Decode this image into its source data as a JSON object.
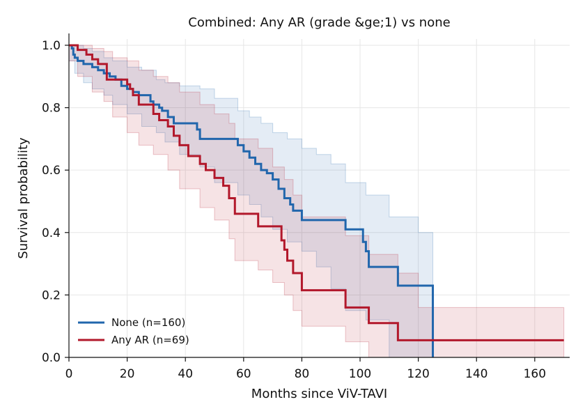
{
  "chart_data": {
    "type": "line",
    "title": "Combined: Any AR (grade &ge;1) vs none",
    "xlabel": "Months since ViV-TAVI",
    "ylabel": "Survival probability",
    "xlim": [
      0,
      172
    ],
    "ylim": [
      0,
      1.02
    ],
    "xticks": [
      0,
      20,
      40,
      60,
      80,
      100,
      120,
      140,
      160
    ],
    "yticks": [
      0.0,
      0.2,
      0.4,
      0.6,
      0.8,
      1.0
    ],
    "xtick_labels": [
      "0",
      "20",
      "40",
      "60",
      "80",
      "100",
      "120",
      "140",
      "160"
    ],
    "ytick_labels": [
      "0.0",
      "0.2",
      "0.4",
      "0.6",
      "0.8",
      "1.0"
    ],
    "grid": true,
    "legend_position": "lower-left",
    "series": [
      {
        "name": "None (n=160)",
        "color": "#2166ac",
        "x": [
          0,
          1,
          1.5,
          2,
          3,
          5,
          8,
          10,
          12,
          14,
          16,
          18,
          20,
          22,
          24,
          28,
          29,
          31,
          32,
          34,
          36,
          44,
          45,
          58,
          60,
          62,
          64,
          66,
          68,
          70,
          72,
          74,
          76,
          77,
          80,
          82,
          95,
          101,
          102,
          103,
          110,
          113,
          125,
          125
        ],
        "y": [
          1.0,
          0.99,
          0.97,
          0.96,
          0.95,
          0.94,
          0.93,
          0.92,
          0.91,
          0.9,
          0.89,
          0.87,
          0.86,
          0.85,
          0.84,
          0.82,
          0.81,
          0.8,
          0.79,
          0.77,
          0.75,
          0.73,
          0.7,
          0.68,
          0.66,
          0.64,
          0.62,
          0.6,
          0.59,
          0.57,
          0.54,
          0.51,
          0.49,
          0.47,
          0.44,
          0.44,
          0.41,
          0.37,
          0.34,
          0.29,
          0.29,
          0.23,
          0.23,
          0.0
        ]
      },
      {
        "name": "Any AR (n=69)",
        "color": "#b2182b",
        "x": [
          0,
          3,
          6,
          8,
          10,
          13,
          20,
          21,
          22,
          24,
          29,
          31,
          34,
          36,
          38,
          41,
          45,
          47,
          50,
          53,
          55,
          57,
          65,
          73,
          74,
          75,
          77,
          80,
          95,
          103,
          113,
          170
        ],
        "y": [
          1.0,
          0.985,
          0.97,
          0.955,
          0.94,
          0.89,
          0.875,
          0.86,
          0.84,
          0.81,
          0.78,
          0.76,
          0.74,
          0.71,
          0.68,
          0.645,
          0.62,
          0.6,
          0.575,
          0.55,
          0.51,
          0.46,
          0.42,
          0.375,
          0.345,
          0.31,
          0.27,
          0.215,
          0.16,
          0.11,
          0.055,
          0.055
        ]
      }
    ],
    "bands": [
      {
        "series": "None (n=160)",
        "color": "#2166ac",
        "opacity": 0.12,
        "x": [
          0,
          2,
          5,
          8,
          12,
          15,
          20,
          25,
          30,
          33,
          38,
          45,
          50,
          58,
          62,
          66,
          70,
          75,
          80,
          85,
          90,
          95,
          102,
          110,
          120,
          125
        ],
        "upper": [
          1.0,
          1.0,
          0.99,
          0.98,
          0.96,
          0.95,
          0.93,
          0.92,
          0.89,
          0.88,
          0.87,
          0.86,
          0.83,
          0.79,
          0.77,
          0.75,
          0.72,
          0.7,
          0.67,
          0.65,
          0.62,
          0.56,
          0.52,
          0.45,
          0.4,
          0.4
        ],
        "lower": [
          0.99,
          0.95,
          0.91,
          0.88,
          0.86,
          0.84,
          0.81,
          0.78,
          0.74,
          0.72,
          0.69,
          0.65,
          0.61,
          0.56,
          0.52,
          0.49,
          0.45,
          0.41,
          0.37,
          0.34,
          0.29,
          0.22,
          0.15,
          0.12,
          0.0,
          0.0
        ]
      },
      {
        "series": "Any AR (n=69)",
        "color": "#b2182b",
        "opacity": 0.12,
        "x": [
          0,
          3,
          8,
          12,
          15,
          20,
          24,
          29,
          34,
          38,
          45,
          50,
          55,
          57,
          65,
          70,
          74,
          77,
          80,
          95,
          103,
          113,
          120,
          130,
          140,
          150,
          160,
          170
        ],
        "upper": [
          1.0,
          1.0,
          0.99,
          0.98,
          0.96,
          0.95,
          0.92,
          0.9,
          0.88,
          0.85,
          0.81,
          0.78,
          0.75,
          0.7,
          0.67,
          0.61,
          0.57,
          0.52,
          0.45,
          0.39,
          0.33,
          0.27,
          0.16,
          0.16,
          0.16,
          0.16,
          0.16,
          0.16
        ],
        "lower": [
          0.99,
          0.95,
          0.9,
          0.85,
          0.82,
          0.77,
          0.72,
          0.68,
          0.65,
          0.6,
          0.54,
          0.48,
          0.44,
          0.38,
          0.31,
          0.28,
          0.24,
          0.2,
          0.15,
          0.1,
          0.05,
          0.0,
          0.0,
          0.0,
          0.0,
          0.0,
          0.0,
          0.0
        ]
      }
    ]
  }
}
